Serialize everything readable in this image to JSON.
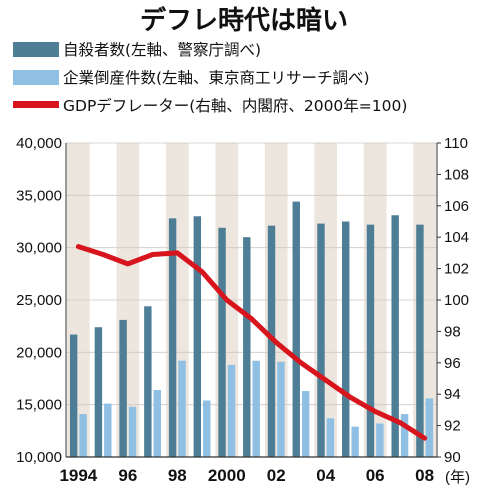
{
  "chart_data": {
    "type": "bar+line",
    "title": "デフレ時代は暗い",
    "unit_label": "(年)",
    "years": [
      1994,
      1995,
      1996,
      1997,
      1998,
      1999,
      2000,
      2001,
      2002,
      2003,
      2004,
      2005,
      2006,
      2007,
      2008
    ],
    "x_tick_labels": [
      "1994",
      "96",
      "98",
      "2000",
      "02",
      "04",
      "06",
      "08"
    ],
    "x_tick_years": [
      1994,
      1996,
      1998,
      2000,
      2002,
      2004,
      2006,
      2008
    ],
    "y_left": {
      "min": 10000,
      "max": 40000,
      "ticks": [
        "10,000",
        "15,000",
        "20,000",
        "25,000",
        "30,000",
        "35,000",
        "40,000"
      ]
    },
    "y_right": {
      "min": 90,
      "max": 110,
      "ticks": [
        "90",
        "92",
        "94",
        "96",
        "98",
        "100",
        "102",
        "104",
        "106",
        "108",
        "110"
      ]
    },
    "series": [
      {
        "name": "自殺者数(左軸、警察庁調べ)",
        "kind": "bar",
        "axis": "left",
        "color": "#4e7d96",
        "values": [
          21700,
          22400,
          23100,
          24400,
          32800,
          33000,
          31900,
          31000,
          32100,
          34400,
          32300,
          32500,
          32200,
          33100,
          32200
        ]
      },
      {
        "name": "企業倒産件数(左軸、東京商工リサーチ調べ)",
        "kind": "bar",
        "axis": "left",
        "color": "#8fbfe3",
        "values": [
          14100,
          15100,
          14800,
          16400,
          19200,
          15400,
          18800,
          19200,
          19100,
          16300,
          13700,
          12900,
          13200,
          14100,
          15600
        ]
      },
      {
        "name": "GDPデフレーター(右軸、内閣府、2000年=100)",
        "kind": "line",
        "axis": "right",
        "color": "#d8141c",
        "values": [
          103.4,
          102.9,
          102.3,
          102.9,
          103.0,
          101.8,
          100.0,
          98.8,
          97.3,
          96.0,
          94.9,
          93.8,
          92.9,
          92.2,
          91.2
        ]
      }
    ]
  }
}
